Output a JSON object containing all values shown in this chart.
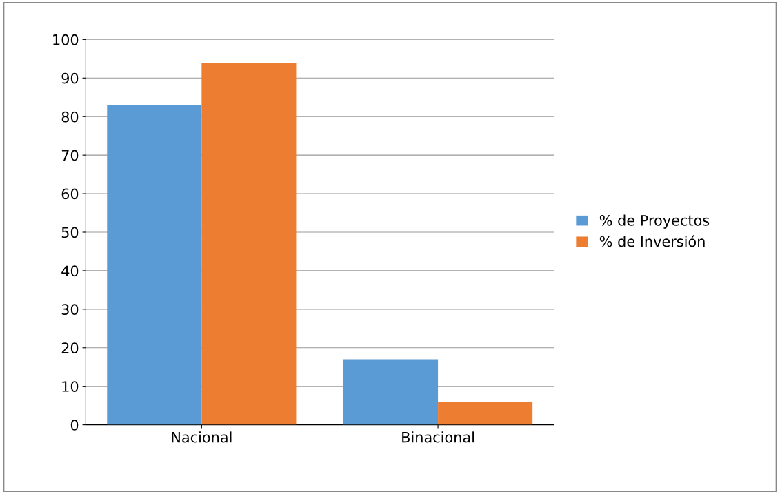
{
  "chart_data": {
    "type": "bar",
    "categories": [
      "Nacional",
      "Binacional"
    ],
    "series": [
      {
        "name": "% de Proyectos",
        "color": "#5b9bd5",
        "values": [
          83,
          17
        ]
      },
      {
        "name": "% de Inversión",
        "color": "#ed7d31",
        "values": [
          94,
          6
        ]
      }
    ],
    "ylim": [
      0,
      100
    ],
    "yticks": [
      0,
      10,
      20,
      30,
      40,
      50,
      60,
      70,
      80,
      90,
      100
    ],
    "grid": "y",
    "legend": "right"
  }
}
